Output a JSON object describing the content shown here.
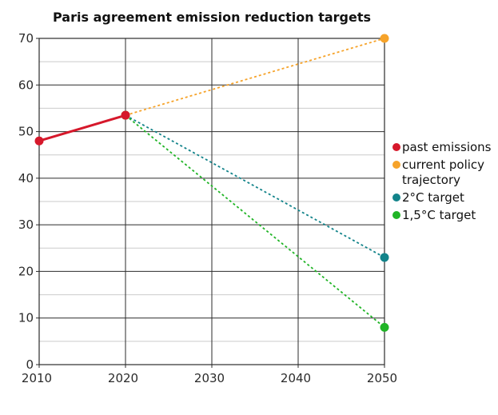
{
  "window": {
    "background": "#ffffff"
  },
  "chart_data": {
    "type": "line",
    "title": "Paris agreement emission reduction targets",
    "xlabel": "",
    "ylabel": "",
    "xlim": [
      2010,
      2050
    ],
    "ylim": [
      0,
      70
    ],
    "xticks": [
      2010,
      2020,
      2030,
      2040,
      2050
    ],
    "yticks": [
      0,
      10,
      20,
      30,
      40,
      50,
      60,
      70
    ],
    "yticks_minor": [
      5,
      15,
      25,
      35,
      45,
      55,
      65
    ],
    "grid": {
      "major_color": "#2b2b2b",
      "minor_color": "#cbcbcb",
      "vertical_major_only": true
    },
    "legend_position": "right",
    "series": [
      {
        "name": "past emissions",
        "color": "#d6182b",
        "line_style": "solid",
        "line_width": 3,
        "marker": "circle",
        "points": [
          [
            2010,
            48
          ],
          [
            2020,
            53.5
          ]
        ]
      },
      {
        "name": "current policy trajectory",
        "color": "#f6a32a",
        "line_style": "dashed",
        "line_width": 1.8,
        "marker": "circle",
        "points": [
          [
            2020,
            53.5
          ],
          [
            2050,
            70
          ]
        ]
      },
      {
        "name": "2°C target",
        "color": "#12838a",
        "line_style": "dashed",
        "line_width": 1.8,
        "marker": "circle",
        "points": [
          [
            2020,
            53.5
          ],
          [
            2050,
            23
          ]
        ]
      },
      {
        "name": "1,5°C target",
        "color": "#20b426",
        "line_style": "dashed",
        "line_width": 1.8,
        "marker": "circle",
        "points": [
          [
            2020,
            53.5
          ],
          [
            2050,
            8
          ]
        ]
      }
    ]
  }
}
